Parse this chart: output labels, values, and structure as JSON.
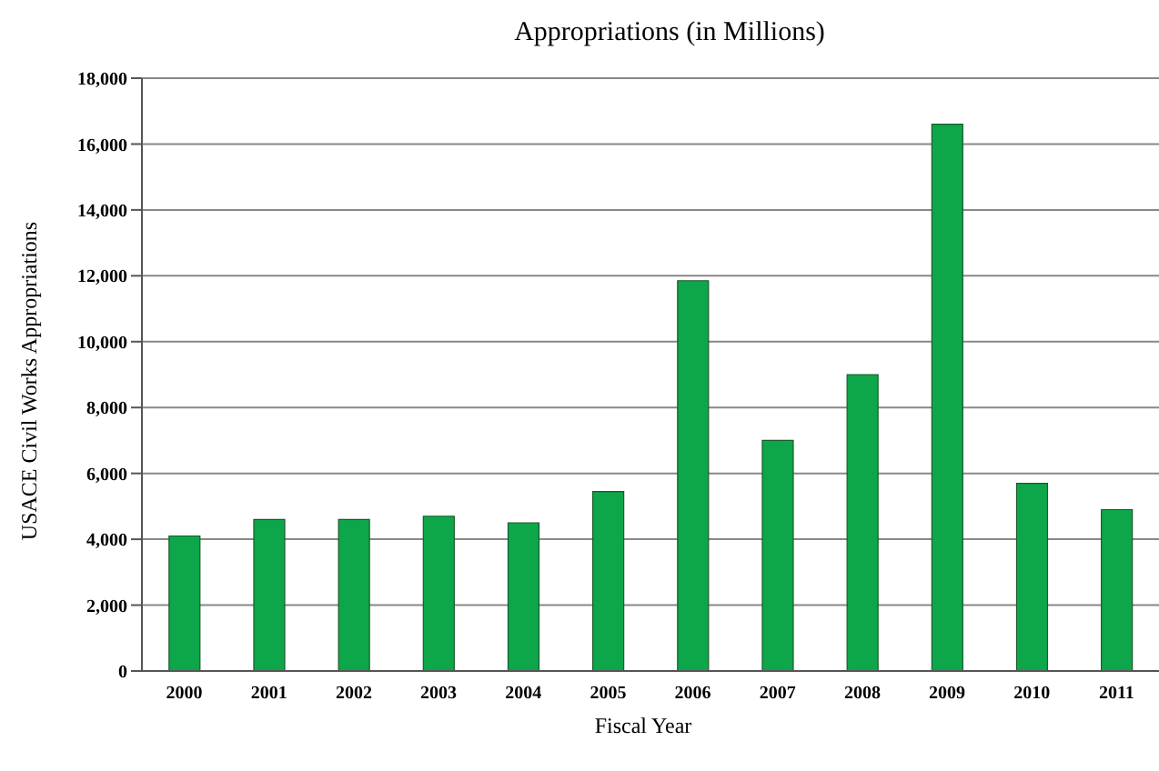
{
  "chart_data": {
    "type": "bar",
    "title": "Appropriations (in Millions)",
    "xlabel": "Fiscal Year",
    "ylabel": "USACE Civil Works Appropriations",
    "categories": [
      "2000",
      "2001",
      "2002",
      "2003",
      "2004",
      "2005",
      "2006",
      "2007",
      "2008",
      "2009",
      "2010",
      "2011"
    ],
    "values": [
      4100,
      4600,
      4600,
      4700,
      4500,
      5450,
      11850,
      7000,
      9000,
      16600,
      5700,
      4900
    ],
    "color": "#0ea64a",
    "ylim": [
      0,
      18000
    ],
    "yticks": [
      {
        "value": 0,
        "label": "0"
      },
      {
        "value": 2000,
        "label": "2,000"
      },
      {
        "value": 4000,
        "label": "4,000"
      },
      {
        "value": 6000,
        "label": "6,000"
      },
      {
        "value": 8000,
        "label": "8,000"
      },
      {
        "value": 10000,
        "label": "10,000"
      },
      {
        "value": 12000,
        "label": "12,000"
      },
      {
        "value": 14000,
        "label": "14,000"
      },
      {
        "value": 16000,
        "label": "16,000"
      },
      {
        "value": 18000,
        "label": "18,000"
      }
    ],
    "grid": "y"
  }
}
